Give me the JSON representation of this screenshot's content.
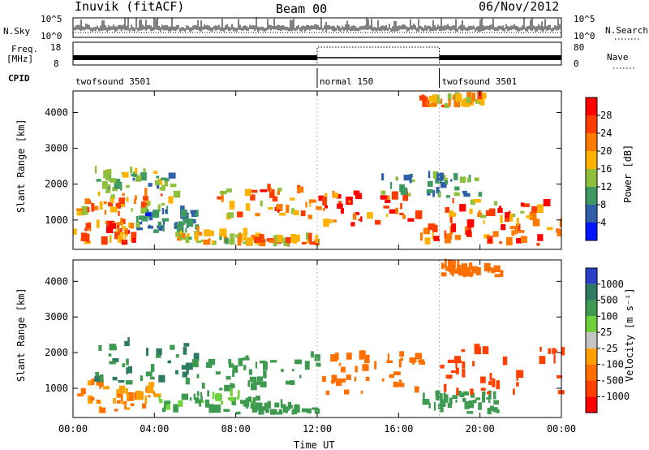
{
  "header": {
    "station": "Inuvik (fitACF)",
    "beam": "Beam 00",
    "date": "06/Nov/2012"
  },
  "strip_left_labels": {
    "nsky": "N.Sky",
    "freq_line1": "Freq.",
    "freq_line2": "[MHz]",
    "cpid": "CPID"
  },
  "strip_right_labels": {
    "nsearch": "N.Search",
    "nave": "Nave"
  },
  "nsky_ticks": [
    "10^5",
    "10^0"
  ],
  "nsearch_ticks": [
    "10^5",
    "10^0"
  ],
  "freq_ticks": [
    "18",
    "8"
  ],
  "nave_ticks": [
    "80",
    "0"
  ],
  "cpid_segments": [
    {
      "label": "twofsound 3501",
      "start_h": 0,
      "end_h": 12
    },
    {
      "label": "normal 150",
      "start_h": 12,
      "end_h": 18
    },
    {
      "label": "twofsound 3501",
      "start_h": 18,
      "end_h": 24
    }
  ],
  "power_colorbar": {
    "label": "Power [dB]",
    "ticks": [
      "28",
      "24",
      "20",
      "16",
      "12",
      "8",
      "4"
    ],
    "colors": [
      "#ff0000",
      "#ff3c00",
      "#ff7a00",
      "#ffb300",
      "#8fc03c",
      "#3e9a60",
      "#2e5fa8",
      "#0015ff"
    ]
  },
  "velocity_colorbar": {
    "label": "Velocity [m s⁻¹]",
    "ticks": [
      "1000",
      "500",
      "100",
      "25",
      "-25",
      "-100",
      "-500",
      "-1000"
    ],
    "colors": [
      "#2a40c8",
      "#2e7a62",
      "#3e9a50",
      "#6fd13a",
      "#c4c4c4",
      "#ffa000",
      "#ff7000",
      "#ff4000",
      "#ff0000"
    ]
  },
  "chart_data": [
    {
      "type": "heatmap",
      "title": "Power",
      "xlabel": "",
      "ylabel": "Slant Range [km]",
      "x_range": [
        "00:00",
        "24:00"
      ],
      "y_range": [
        180,
        4600
      ],
      "y_ticks": [
        "1000",
        "2000",
        "3000",
        "4000"
      ],
      "bands": [
        {
          "t0": 0,
          "t1": 3,
          "r0": 300,
          "r1": 900,
          "value": 24
        },
        {
          "t0": 0,
          "t1": 5,
          "r0": 1100,
          "r1": 1800,
          "value": 20
        },
        {
          "t0": 1,
          "t1": 5,
          "r0": 1800,
          "r1": 2300,
          "value": 12
        },
        {
          "t0": 3,
          "t1": 6,
          "r0": 600,
          "r1": 1200,
          "value": 8
        },
        {
          "t0": 5,
          "t1": 9,
          "r0": 300,
          "r1": 600,
          "value": 16
        },
        {
          "t0": 7,
          "t1": 12,
          "r0": 900,
          "r1": 1800,
          "value": 22
        },
        {
          "t0": 8,
          "t1": 12,
          "r0": 250,
          "r1": 450,
          "value": 20
        },
        {
          "t0": 12,
          "t1": 17,
          "r0": 800,
          "r1": 1700,
          "value": 26
        },
        {
          "t0": 17,
          "t1": 24,
          "r0": 250,
          "r1": 800,
          "value": 24
        },
        {
          "t0": 18,
          "t1": 24,
          "r0": 800,
          "r1": 1500,
          "value": 22
        },
        {
          "t0": 15,
          "t1": 20,
          "r0": 1600,
          "r1": 2200,
          "value": 10
        },
        {
          "t0": 17,
          "t1": 20,
          "r0": 4100,
          "r1": 4400,
          "value": 20
        }
      ]
    },
    {
      "type": "heatmap",
      "title": "Velocity",
      "xlabel": "Time UT",
      "ylabel": "Slant Range [km]",
      "x_range": [
        "00:00",
        "24:00"
      ],
      "y_range": [
        180,
        4600
      ],
      "x_ticks": [
        "00:00",
        "04:00",
        "08:00",
        "12:00",
        "16:00",
        "20:00",
        "00:00"
      ],
      "y_ticks": [
        "1000",
        "2000",
        "3000",
        "4000"
      ],
      "bands": [
        {
          "t0": 0,
          "t1": 4,
          "r0": 300,
          "r1": 1100,
          "value": -100
        },
        {
          "t0": 1,
          "t1": 6,
          "r0": 1100,
          "r1": 2200,
          "value": 500
        },
        {
          "t0": 4,
          "t1": 9,
          "r0": 300,
          "r1": 800,
          "value": 100
        },
        {
          "t0": 6,
          "t1": 12,
          "r0": 900,
          "r1": 1900,
          "value": 300
        },
        {
          "t0": 8,
          "t1": 12,
          "r0": 250,
          "r1": 500,
          "value": 200
        },
        {
          "t0": 12,
          "t1": 17,
          "r0": 800,
          "r1": 1900,
          "value": -300
        },
        {
          "t0": 17,
          "t1": 21,
          "r0": 250,
          "r1": 800,
          "value": 150
        },
        {
          "t0": 18,
          "t1": 24,
          "r0": 800,
          "r1": 2100,
          "value": -800
        },
        {
          "t0": 18,
          "t1": 21,
          "r0": 4100,
          "r1": 4400,
          "value": -400
        }
      ]
    }
  ]
}
